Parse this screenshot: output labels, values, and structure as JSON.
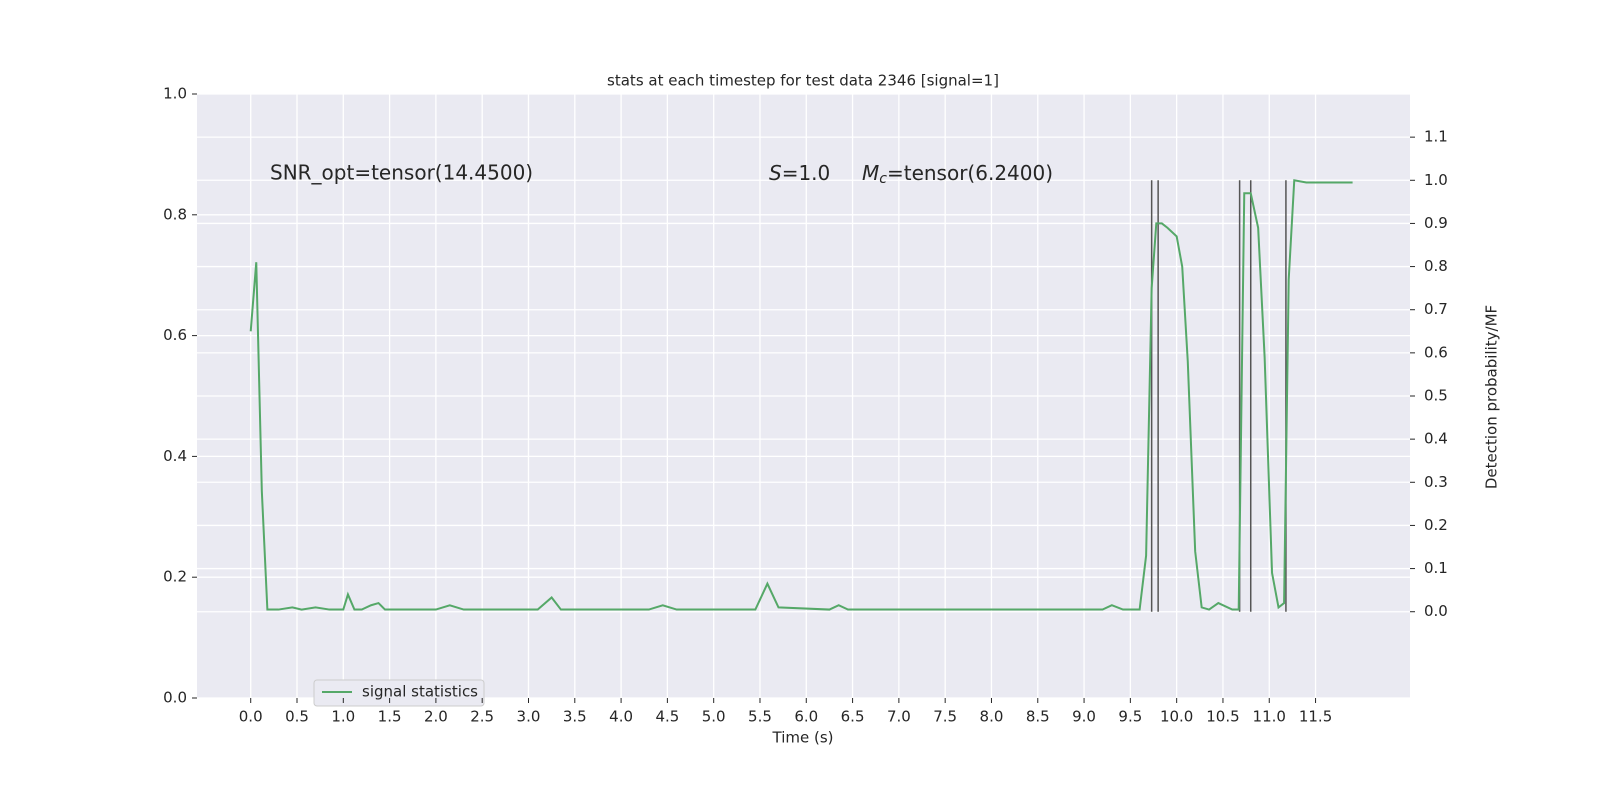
{
  "chart_data": {
    "type": "line",
    "title": "stats at each timestep for test data 2346 [signal=1]",
    "xlabel": "Time (s)",
    "y2label": "Detection probability/MF",
    "annotations": [
      {
        "text": "SNR_opt=tensor(14.4500)"
      },
      {
        "symbol": "S",
        "text": "=1.0"
      },
      {
        "symbol": "M",
        "subscript": "c",
        "text": "=tensor(6.2400)"
      }
    ],
    "xlim": [
      -0.58,
      12.52
    ],
    "xticks": [
      {
        "value": 0,
        "label": "0.0"
      },
      {
        "value": 0.5,
        "label": "0.5"
      },
      {
        "value": 1,
        "label": "1.0"
      },
      {
        "value": 1.5,
        "label": "1.5"
      },
      {
        "value": 2,
        "label": "2.0"
      },
      {
        "value": 2.5,
        "label": "2.5"
      },
      {
        "value": 3,
        "label": "3.0"
      },
      {
        "value": 3.5,
        "label": "3.5"
      },
      {
        "value": 4,
        "label": "4.0"
      },
      {
        "value": 4.5,
        "label": "4.5"
      },
      {
        "value": 5,
        "label": "5.0"
      },
      {
        "value": 5.5,
        "label": "5.5"
      },
      {
        "value": 6,
        "label": "6.0"
      },
      {
        "value": 6.5,
        "label": "6.5"
      },
      {
        "value": 7,
        "label": "7.0"
      },
      {
        "value": 7.5,
        "label": "7.5"
      },
      {
        "value": 8,
        "label": "8.0"
      },
      {
        "value": 8.5,
        "label": "8.5"
      },
      {
        "value": 9,
        "label": "9.0"
      },
      {
        "value": 9.5,
        "label": "9.5"
      },
      {
        "value": 10,
        "label": "10.0"
      },
      {
        "value": 10.5,
        "label": "10.5"
      },
      {
        "value": 11,
        "label": "11.0"
      },
      {
        "value": 11.5,
        "label": "11.5"
      }
    ],
    "ylim": [
      0,
      1
    ],
    "yticks": [
      {
        "value": 0,
        "label": "0.0"
      },
      {
        "value": 0.2,
        "label": "0.2"
      },
      {
        "value": 0.4,
        "label": "0.4"
      },
      {
        "value": 0.6,
        "label": "0.6"
      },
      {
        "value": 0.8,
        "label": "0.8"
      },
      {
        "value": 1,
        "label": "1.0"
      }
    ],
    "y2lim": [
      -0.2,
      1.2
    ],
    "y2ticks": [
      {
        "value": 0,
        "label": "0.0"
      },
      {
        "value": 0.1,
        "label": "0.1"
      },
      {
        "value": 0.2,
        "label": "0.2"
      },
      {
        "value": 0.3,
        "label": "0.3"
      },
      {
        "value": 0.4,
        "label": "0.4"
      },
      {
        "value": 0.5,
        "label": "0.5"
      },
      {
        "value": 0.6,
        "label": "0.6"
      },
      {
        "value": 0.7,
        "label": "0.7"
      },
      {
        "value": 0.8,
        "label": "0.8"
      },
      {
        "value": 0.9,
        "label": "0.9"
      },
      {
        "value": 1,
        "label": "1.0"
      },
      {
        "value": 1.1,
        "label": "1.1"
      }
    ],
    "grid": true,
    "legend": "lower left",
    "x": [
      0,
      0.06,
      0.12,
      0.18,
      0.3,
      0.45,
      0.55,
      0.7,
      0.85,
      1.0,
      1.05,
      1.12,
      1.2,
      1.3,
      1.38,
      1.45,
      2.0,
      2.15,
      2.3,
      3.1,
      3.25,
      3.35,
      4.3,
      4.45,
      4.6,
      5.45,
      5.58,
      5.7,
      6.25,
      6.35,
      6.45,
      9.2,
      9.3,
      9.42,
      9.6,
      9.67,
      9.73,
      9.78,
      9.84,
      9.9,
      10.0,
      10.06,
      10.12,
      10.2,
      10.27,
      10.35,
      10.45,
      10.6,
      10.67,
      10.73,
      10.8,
      10.88,
      10.95,
      11.03,
      11.1,
      11.16,
      11.21,
      11.27,
      11.4,
      11.9
    ],
    "series": [
      {
        "name": "signal statistics",
        "color": "#55a868",
        "axis": "y2",
        "values": [
          0.65,
          0.81,
          0.28,
          0.005,
          0.005,
          0.01,
          0.005,
          0.01,
          0.005,
          0.005,
          0.04,
          0.005,
          0.005,
          0.015,
          0.02,
          0.005,
          0.005,
          0.015,
          0.005,
          0.005,
          0.033,
          0.005,
          0.005,
          0.015,
          0.005,
          0.005,
          0.065,
          0.01,
          0.005,
          0.015,
          0.005,
          0.005,
          0.015,
          0.005,
          0.005,
          0.13,
          0.75,
          0.9,
          0.9,
          0.89,
          0.87,
          0.8,
          0.58,
          0.14,
          0.01,
          0.005,
          0.02,
          0.005,
          0.005,
          0.97,
          0.97,
          0.89,
          0.59,
          0.09,
          0.01,
          0.02,
          0.77,
          1.0,
          0.995,
          0.995
        ]
      }
    ],
    "vlines": {
      "x": [
        9.73,
        9.8,
        10.68,
        10.8,
        11.18
      ],
      "ymin": 0,
      "ymax": 1,
      "color": "#555555"
    }
  }
}
